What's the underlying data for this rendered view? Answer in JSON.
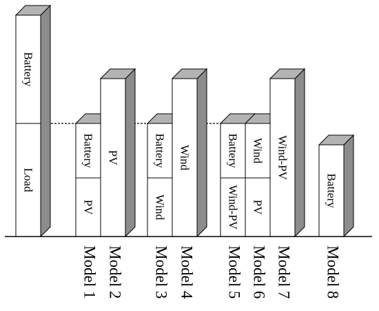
{
  "diagram": {
    "blocks": [
      {
        "id": "load-ref",
        "segments": [
          "Load",
          "Battery"
        ]
      },
      {
        "id": "model1",
        "segments": [
          "PV",
          "Battery"
        ]
      },
      {
        "id": "model2",
        "segments": [
          "PV"
        ]
      },
      {
        "id": "model3",
        "segments": [
          "Wind",
          "Battery"
        ]
      },
      {
        "id": "model4",
        "segments": [
          "Wind"
        ]
      },
      {
        "id": "model5",
        "segments": [
          "Wind-PV",
          "Battery"
        ]
      },
      {
        "id": "model6",
        "segments": [
          "PV",
          "Wind"
        ]
      },
      {
        "id": "model7",
        "segments": [
          "Wind-PV"
        ]
      },
      {
        "id": "model8",
        "segments": [
          "Battery"
        ]
      }
    ],
    "models": [
      "Model 1",
      "Model 2",
      "Model 3",
      "Model 4",
      "Model 5",
      "Model 6",
      "Model 7",
      "Model 8"
    ],
    "colors": {
      "face": "#ffffff",
      "side": "#8c8c8c",
      "top": "#b3b3b3",
      "line": "#000000"
    }
  }
}
